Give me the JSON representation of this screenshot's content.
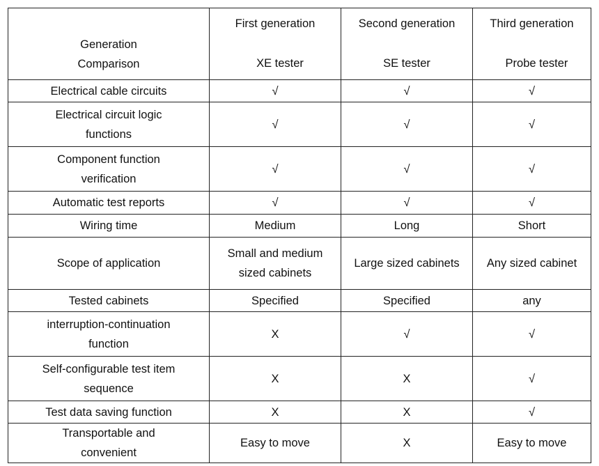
{
  "header": {
    "corner": [
      "Generation",
      "Comparison"
    ],
    "columns": [
      {
        "generation": "First generation",
        "tester": "XE tester"
      },
      {
        "generation": "Second generation",
        "tester": "SE tester"
      },
      {
        "generation": "Third generation",
        "tester": "Probe tester"
      }
    ]
  },
  "rows": [
    {
      "label": "Electrical cable circuits",
      "values": [
        "√",
        "√",
        "√"
      ]
    },
    {
      "label": "Electrical circuit logic functions",
      "values": [
        "√",
        "√",
        "√"
      ]
    },
    {
      "label": "Component function verification",
      "values": [
        "√",
        "√",
        "√"
      ]
    },
    {
      "label": "Automatic test reports",
      "values": [
        "√",
        "√",
        "√"
      ]
    },
    {
      "label": "Wiring time",
      "values": [
        "Medium",
        "Long",
        "Short"
      ]
    },
    {
      "label": "Scope of application",
      "values": [
        "Small and medium sized cabinets",
        "Large sized cabinets",
        "Any sized cabinet"
      ]
    },
    {
      "label": "Tested cabinets",
      "values": [
        "Specified",
        "Specified",
        "any"
      ]
    },
    {
      "label": "interruption-continuation function",
      "values": [
        "X",
        "√",
        "√"
      ]
    },
    {
      "label": "Self-configurable test item sequence",
      "values": [
        "X",
        "X",
        "√"
      ]
    },
    {
      "label": "Test data saving function",
      "values": [
        "X",
        "X",
        "√"
      ]
    },
    {
      "label": "Transportable and convenient",
      "values": [
        "Easy to move",
        "X",
        "Easy to move"
      ]
    }
  ]
}
